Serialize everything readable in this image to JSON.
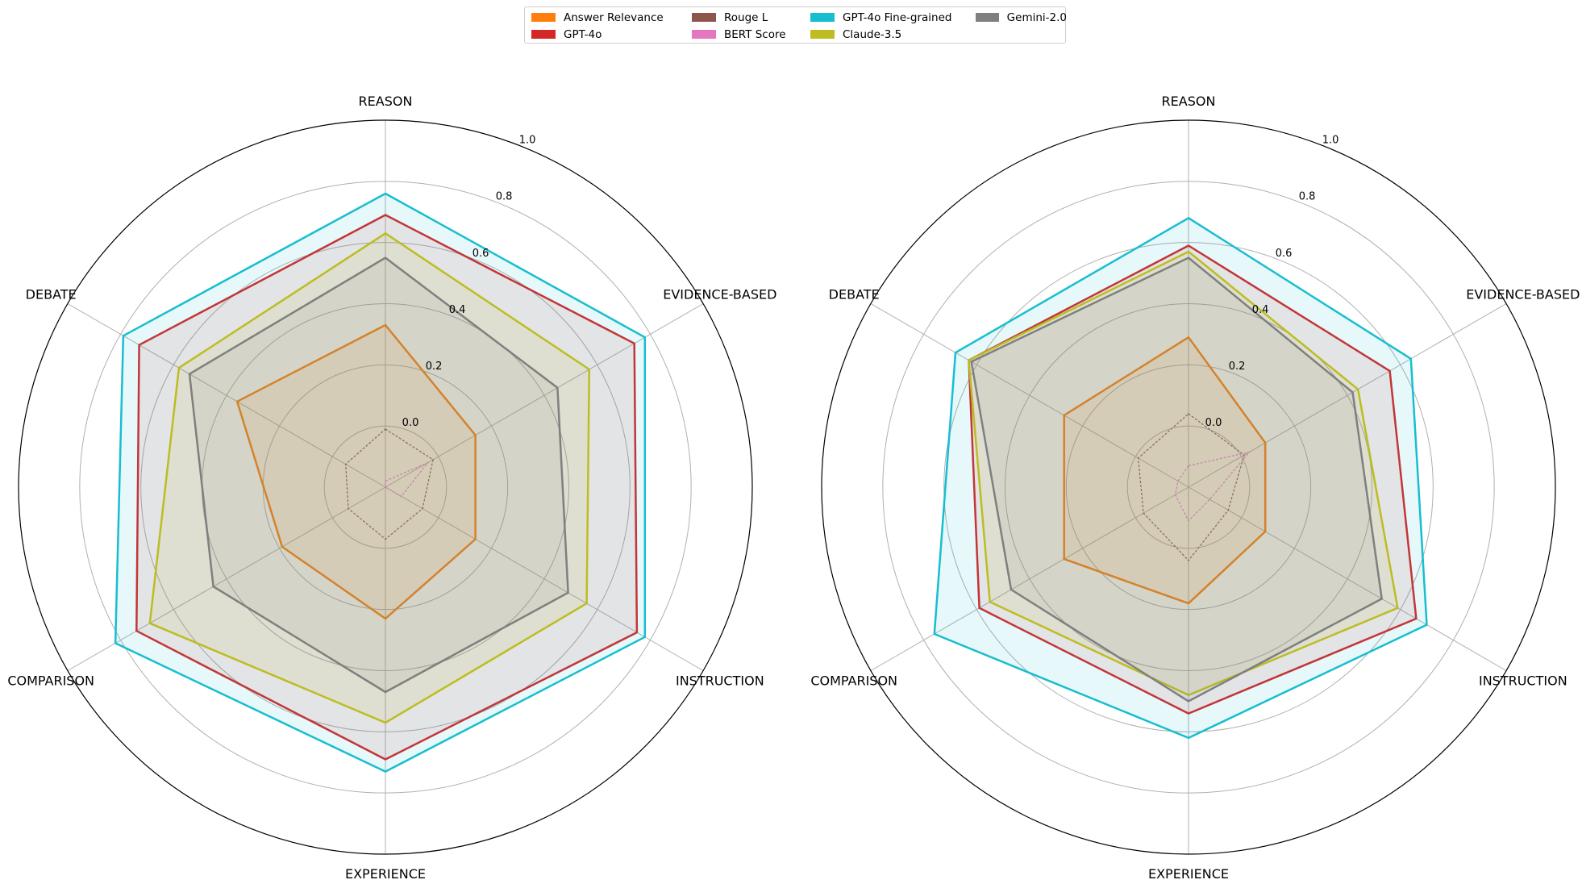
{
  "chart_data": [
    {
      "type": "radar",
      "panel": "left",
      "axes": [
        "REASON",
        "EVIDENCE-BASED",
        "INSTRUCTION",
        "EXPERIENCE",
        "COMPARISON",
        "DEBATE"
      ],
      "rlim": [
        -0.2,
        1.0
      ],
      "radial_ticks": [
        "0.0",
        "0.2",
        "0.4",
        "0.6",
        "0.8",
        "1.0"
      ],
      "radial_tick_values": [
        0.0,
        0.2,
        0.4,
        0.6,
        0.8,
        1.0
      ],
      "grid": true,
      "series": [
        {
          "name": "Answer Relevance",
          "values": [
            0.33,
            0.14,
            0.14,
            0.23,
            0.19,
            0.36
          ]
        },
        {
          "name": "GPT-4o",
          "values": [
            0.69,
            0.74,
            0.75,
            0.69,
            0.74,
            0.73
          ]
        },
        {
          "name": "Rouge L",
          "values": [
            -0.01,
            -0.02,
            -0.06,
            -0.03,
            -0.06,
            -0.05
          ]
        },
        {
          "name": "BERT Score",
          "values": [
            -0.18,
            -0.04,
            -0.14,
            -0.2,
            -0.2,
            -0.2
          ]
        },
        {
          "name": "GPT-4o Fine-grained",
          "values": [
            0.76,
            0.78,
            0.78,
            0.73,
            0.82,
            0.79
          ]
        },
        {
          "name": "Claude-3.5",
          "values": [
            0.63,
            0.57,
            0.56,
            0.57,
            0.69,
            0.58
          ]
        },
        {
          "name": "Gemini-2.0",
          "values": [
            0.55,
            0.45,
            0.49,
            0.47,
            0.45,
            0.54
          ]
        }
      ]
    },
    {
      "type": "radar",
      "panel": "right",
      "axes": [
        "REASON",
        "EVIDENCE-BASED",
        "INSTRUCTION",
        "EXPERIENCE",
        "COMPARISON",
        "DEBATE"
      ],
      "rlim": [
        -0.2,
        1.0
      ],
      "radial_ticks": [
        "0.0",
        "0.2",
        "0.4",
        "0.6",
        "0.8",
        "1.0"
      ],
      "radial_tick_values": [
        0.0,
        0.2,
        0.4,
        0.6,
        0.8,
        1.0
      ],
      "grid": true,
      "series": [
        {
          "name": "Answer Relevance",
          "values": [
            0.29,
            0.09,
            0.09,
            0.18,
            0.27,
            0.27
          ]
        },
        {
          "name": "GPT-4o",
          "values": [
            0.59,
            0.56,
            0.66,
            0.54,
            0.59,
            0.63
          ]
        },
        {
          "name": "Rouge L",
          "values": [
            0.04,
            0.01,
            -0.05,
            0.04,
            -0.03,
            -0.01
          ]
        },
        {
          "name": "BERT Score",
          "values": [
            -0.13,
            0.03,
            -0.12,
            -0.09,
            -0.15,
            -0.16
          ]
        },
        {
          "name": "GPT-4o Fine-grained",
          "values": [
            0.68,
            0.64,
            0.7,
            0.62,
            0.76,
            0.68
          ]
        },
        {
          "name": "Claude-3.5",
          "values": [
            0.57,
            0.44,
            0.59,
            0.48,
            0.55,
            0.63
          ]
        },
        {
          "name": "Gemini-2.0",
          "values": [
            0.55,
            0.42,
            0.53,
            0.5,
            0.47,
            0.62
          ]
        }
      ]
    }
  ],
  "legend": {
    "placement": "top-center",
    "entries": [
      {
        "name": "Answer Relevance",
        "color": "#ff7f0e"
      },
      {
        "name": "GPT-4o",
        "color": "#d62728"
      },
      {
        "name": "Rouge L",
        "color": "#8c564b"
      },
      {
        "name": "BERT Score",
        "color": "#e377c2"
      },
      {
        "name": "GPT-4o Fine-grained",
        "color": "#17becf"
      },
      {
        "name": "Claude-3.5",
        "color": "#bcbd22"
      },
      {
        "name": "Gemini-2.0",
        "color": "#7f7f7f"
      }
    ]
  },
  "style": {
    "fill_series": [
      "Answer Relevance",
      "GPT-4o",
      "GPT-4o Fine-grained",
      "Claude-3.5",
      "Gemini-2.0"
    ],
    "dashed_series": [
      "Rouge L",
      "BERT Score"
    ]
  }
}
